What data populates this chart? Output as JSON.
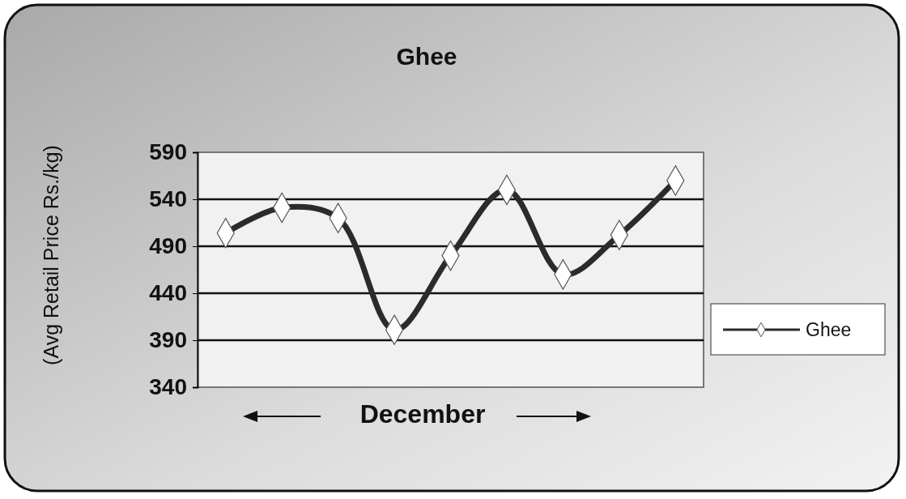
{
  "chart_data": {
    "type": "line",
    "title": "Ghee",
    "xlabel": "December",
    "ylabel": "(Avg Retail Price Rs./kg)",
    "categories": [
      null,
      null,
      null,
      null,
      null,
      null,
      null,
      null,
      null
    ],
    "series": [
      {
        "name": "Ghee",
        "color": "#2b2b2b",
        "values": [
          504,
          531,
          520,
          401,
          480,
          550,
          460,
          502,
          560
        ]
      }
    ],
    "ylim": [
      340,
      590
    ],
    "yticks": [
      340,
      390,
      440,
      490,
      540,
      590
    ],
    "grid": "y",
    "legend": "right",
    "marker": "diamond",
    "line_style": "solid"
  }
}
